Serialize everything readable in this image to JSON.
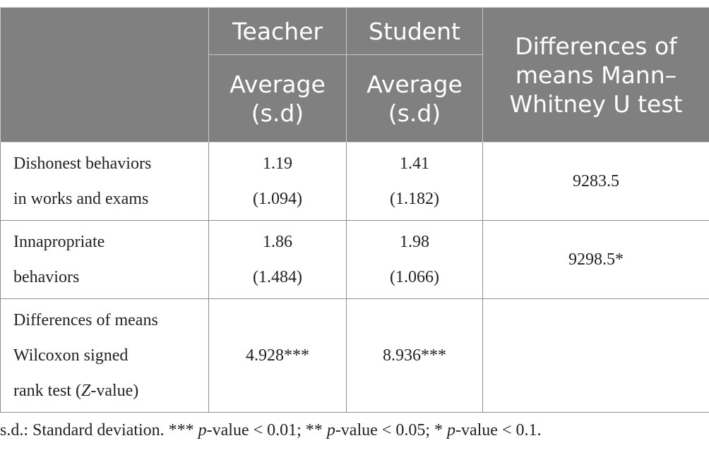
{
  "header": {
    "teacher": "Teacher",
    "student": "Student",
    "diff_col": "Differences of means Mann–Whitney U test",
    "teacher_sub": "Average (s.d)",
    "student_sub": "Average (s.d)"
  },
  "rows": [
    {
      "label_1": "Dishonest behaviors",
      "label_2": "in works and exams",
      "teacher_avg": "1.19",
      "teacher_sd": "(1.094)",
      "student_avg": "1.41",
      "student_sd": "(1.182)",
      "mw": "9283.5"
    },
    {
      "label_1": "Innapropriate",
      "label_2": "behaviors",
      "teacher_avg": "1.86",
      "teacher_sd": "(1.484)",
      "student_avg": "1.98",
      "student_sd": "(1.066)",
      "mw": "9298.5*"
    }
  ],
  "wilcoxon_row": {
    "label_1": "Differences of means",
    "label_2": "Wilcoxon signed",
    "label_3_pre": "rank test (",
    "label_3_z": "Z",
    "label_3_post": "-value)",
    "teacher": "4.928***",
    "student": "8.936***"
  },
  "footnote": {
    "a": "s.d.: Standard deviation. *** ",
    "p": "p",
    "b": "-value < 0.01; ** ",
    "c": "-value < 0.05; * ",
    "d": "-value < 0.1."
  }
}
